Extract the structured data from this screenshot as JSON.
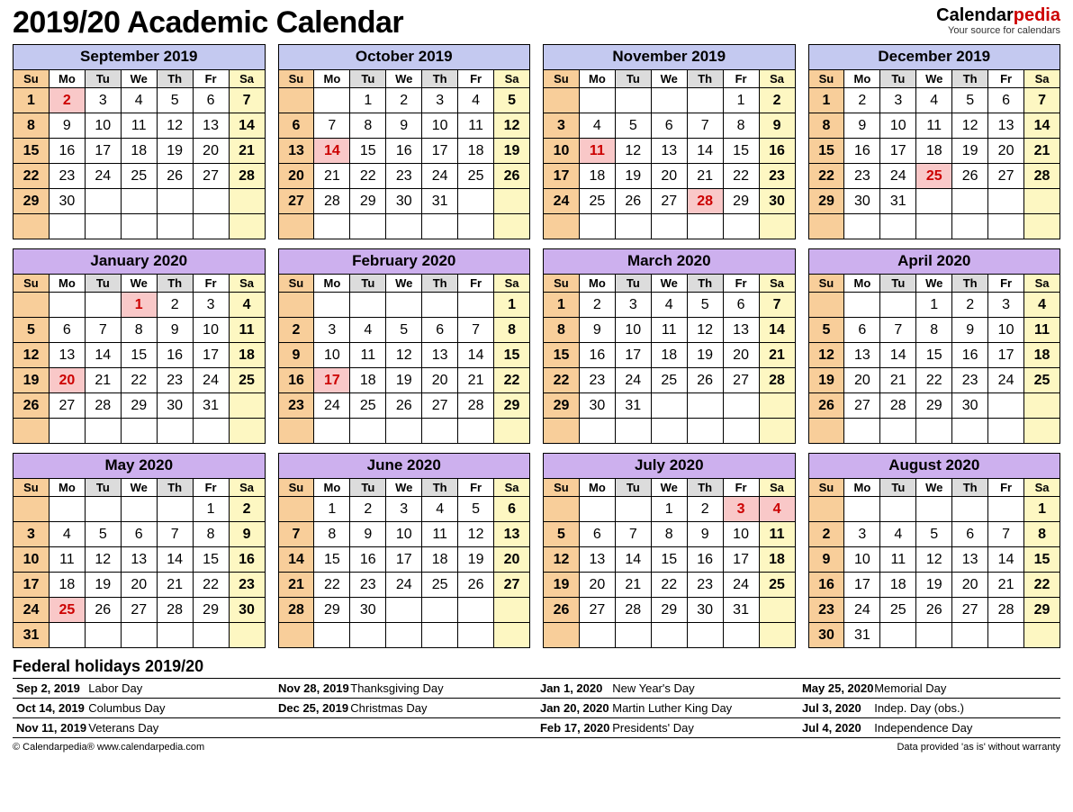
{
  "title": "2019/20 Academic Calendar",
  "brand": {
    "name1": "Calendar",
    "name2": "pedia",
    "tagline": "Your source for calendars"
  },
  "colors": {
    "header_2019": "#c4c9f0",
    "header_2020": "#cdb0ee",
    "sun_bg": "#f8ce9a",
    "sat_bg": "#fdf7c2",
    "dow_sun_bg": "#f8ce9a",
    "dow_sat_bg": "#fdf7c2",
    "dow_white": "#ffffff",
    "dow_gray": "#dcdcdc",
    "holiday_bg": "#f9c8c8",
    "holiday_fg": "#cc0000",
    "border": "#000000",
    "background": "#ffffff"
  },
  "dow": [
    "Su",
    "Mo",
    "Tu",
    "We",
    "Th",
    "Fr",
    "Sa"
  ],
  "months": [
    {
      "name": "September 2019",
      "year": 2019,
      "start": 0,
      "days": 30,
      "holidays": [
        2
      ]
    },
    {
      "name": "October 2019",
      "year": 2019,
      "start": 2,
      "days": 31,
      "holidays": [
        14
      ]
    },
    {
      "name": "November 2019",
      "year": 2019,
      "start": 5,
      "days": 30,
      "holidays": [
        11,
        28
      ]
    },
    {
      "name": "December 2019",
      "year": 2019,
      "start": 0,
      "days": 31,
      "holidays": [
        25
      ]
    },
    {
      "name": "January 2020",
      "year": 2020,
      "start": 3,
      "days": 31,
      "holidays": [
        1,
        20
      ]
    },
    {
      "name": "February 2020",
      "year": 2020,
      "start": 6,
      "days": 29,
      "holidays": [
        17
      ]
    },
    {
      "name": "March 2020",
      "year": 2020,
      "start": 0,
      "days": 31,
      "holidays": []
    },
    {
      "name": "April 2020",
      "year": 2020,
      "start": 3,
      "days": 30,
      "holidays": []
    },
    {
      "name": "May 2020",
      "year": 2020,
      "start": 5,
      "days": 31,
      "holidays": [
        25
      ]
    },
    {
      "name": "June 2020",
      "year": 2020,
      "start": 1,
      "days": 30,
      "holidays": []
    },
    {
      "name": "July 2020",
      "year": 2020,
      "start": 3,
      "days": 31,
      "holidays": [
        3,
        4
      ]
    },
    {
      "name": "August 2020",
      "year": 2020,
      "start": 6,
      "days": 31,
      "holidays": []
    }
  ],
  "month_rows": 6,
  "holidays_title": "Federal holidays 2019/20",
  "holidays_list": [
    [
      {
        "date": "Sep 2, 2019",
        "name": "Labor Day"
      },
      {
        "date": "Nov 28, 2019",
        "name": "Thanksgiving Day"
      },
      {
        "date": "Jan 1, 2020",
        "name": "New Year's Day"
      },
      {
        "date": "May 25, 2020",
        "name": "Memorial Day"
      }
    ],
    [
      {
        "date": "Oct 14, 2019",
        "name": "Columbus Day"
      },
      {
        "date": "Dec 25, 2019",
        "name": "Christmas Day"
      },
      {
        "date": "Jan 20, 2020",
        "name": "Martin Luther King Day"
      },
      {
        "date": "Jul 3, 2020",
        "name": "Indep. Day (obs.)"
      }
    ],
    [
      {
        "date": "Nov 11, 2019",
        "name": "Veterans Day"
      },
      {
        "date": "",
        "name": ""
      },
      {
        "date": "Feb 17, 2020",
        "name": "Presidents' Day"
      },
      {
        "date": "Jul 4, 2020",
        "name": "Independence Day"
      }
    ]
  ],
  "footer": {
    "left": "© Calendarpedia®   www.calendarpedia.com",
    "right": "Data provided 'as is' without warranty"
  }
}
